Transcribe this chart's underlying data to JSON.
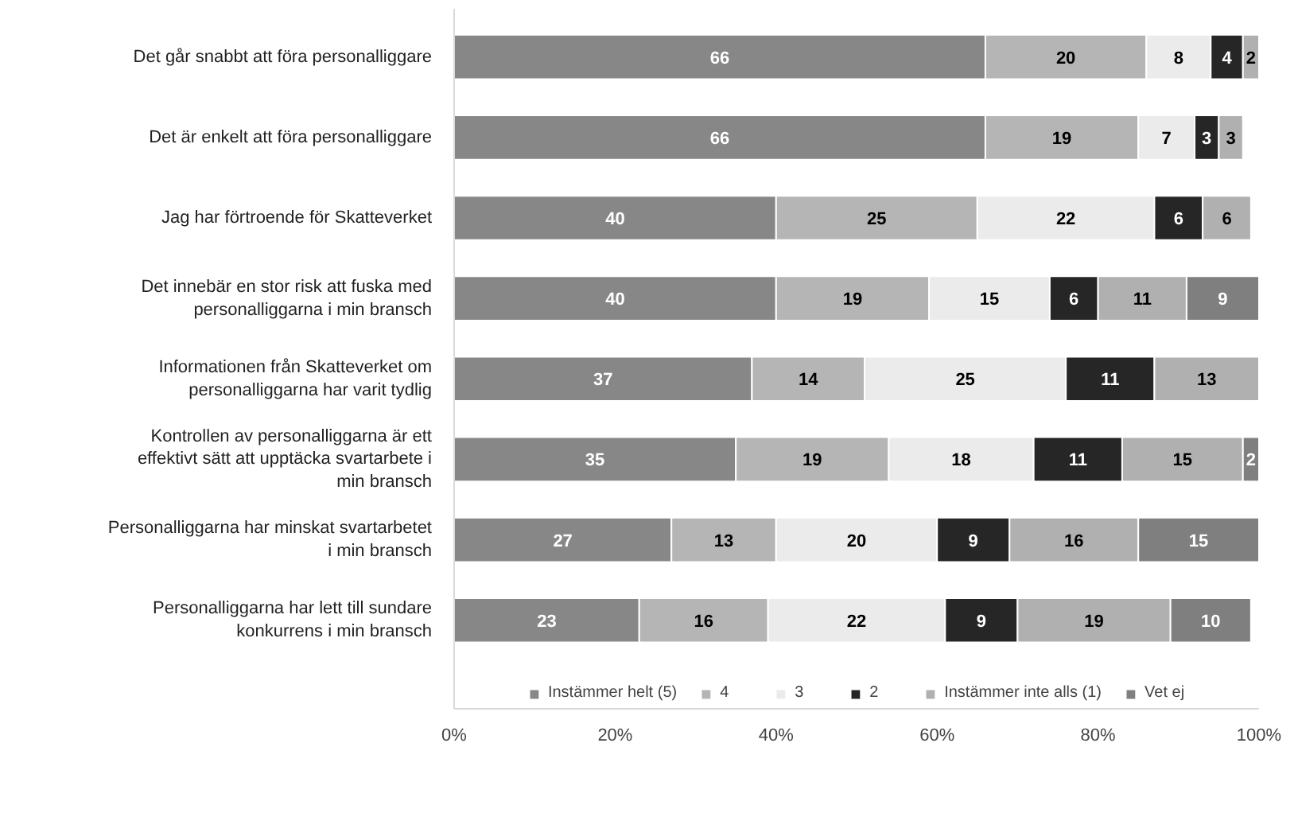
{
  "chart_data": {
    "type": "bar",
    "orientation": "horizontal",
    "stacked": true,
    "data_labels": true,
    "legend": "bottom",
    "grid": false,
    "categories": [
      "Det går snabbt att föra personalliggare",
      "Det är enkelt att föra personalliggare",
      "Jag har förtroende för Skatteverket",
      "Det innebär en stor risk att fuska med personalliggarna i min bransch",
      "Informationen från Skatteverket om personalliggarna har varit tydlig",
      "Kontrollen av personalliggarna är ett effektivt sätt att upptäcka svartarbete i min bransch",
      "Personalliggarna har minskat svartarbetet i min bransch",
      "Personalliggarna har lett till sundare konkurrens i min bransch"
    ],
    "series": [
      {
        "name": "Instämmer helt (5)",
        "color": "#878787",
        "values": [
          66,
          66,
          40,
          40,
          37,
          35,
          27,
          23
        ]
      },
      {
        "name": "4",
        "color": "#b5b5b5",
        "values": [
          20,
          19,
          25,
          19,
          14,
          19,
          13,
          16
        ]
      },
      {
        "name": "3",
        "color": "#ebebeb",
        "values": [
          8,
          7,
          22,
          15,
          25,
          18,
          20,
          22
        ]
      },
      {
        "name": "2",
        "color": "#262626",
        "values": [
          4,
          3,
          6,
          6,
          11,
          11,
          9,
          9
        ]
      },
      {
        "name": "Instämmer inte alls (1)",
        "color": "#b0b0b0",
        "values": [
          2,
          3,
          6,
          11,
          13,
          15,
          16,
          19
        ]
      },
      {
        "name": "Vet ej",
        "color": "#7f7f7f",
        "values": [
          null,
          null,
          null,
          9,
          null,
          2,
          15,
          10
        ]
      }
    ],
    "xlim": [
      0,
      100
    ],
    "xticks": [
      {
        "value": 0,
        "label": "0%"
      },
      {
        "value": 20,
        "label": "20%"
      },
      {
        "value": 40,
        "label": "40%"
      },
      {
        "value": 60,
        "label": "60%"
      },
      {
        "value": 80,
        "label": "80%"
      },
      {
        "value": 100,
        "label": "100%"
      }
    ]
  }
}
